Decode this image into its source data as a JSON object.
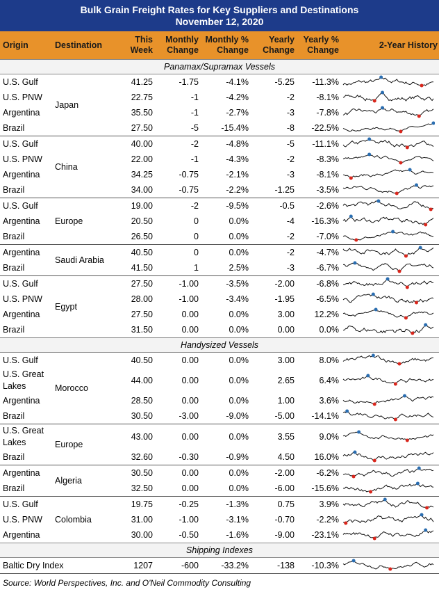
{
  "title": [
    "Bulk Grain Freight Rates for Key Suppliers and Destinations",
    "November 12, 2020"
  ],
  "columns": [
    [
      "Origin"
    ],
    [
      "Destination"
    ],
    [
      "This",
      "Week"
    ],
    [
      "Monthly",
      "Change"
    ],
    [
      "Monthly %",
      "Change"
    ],
    [
      "Yearly",
      "Change"
    ],
    [
      "Yearly %",
      "Change"
    ],
    [
      "2-Year History"
    ]
  ],
  "sections": [
    {
      "title": "Panamax/Supramax Vessels",
      "groups": [
        {
          "destination": "Japan",
          "rows": [
            {
              "origin": "U.S. Gulf",
              "cells": [
                "41.25",
                "-1.75",
                "-4.1%",
                "-5.25",
                "-11.3%"
              ]
            },
            {
              "origin": "U.S. PNW",
              "cells": [
                "22.75",
                "-1",
                "-4.2%",
                "-2",
                "-8.1%"
              ]
            },
            {
              "origin": "Argentina",
              "cells": [
                "35.50",
                "-1",
                "-2.7%",
                "-3",
                "-7.8%"
              ]
            },
            {
              "origin": "Brazil",
              "cells": [
                "27.50",
                "-5",
                "-15.4%",
                "-8",
                "-22.5%"
              ]
            }
          ]
        },
        {
          "destination": "China",
          "rows": [
            {
              "origin": "U.S. Gulf",
              "cells": [
                "40.00",
                "-2",
                "-4.8%",
                "-5",
                "-11.1%"
              ]
            },
            {
              "origin": "U.S. PNW",
              "cells": [
                "22.00",
                "-1",
                "-4.3%",
                "-2",
                "-8.3%"
              ]
            },
            {
              "origin": "Argentina",
              "cells": [
                "34.25",
                "-0.75",
                "-2.1%",
                "-3",
                "-8.1%"
              ]
            },
            {
              "origin": "Brazil",
              "cells": [
                "34.00",
                "-0.75",
                "-2.2%",
                "-1.25",
                "-3.5%"
              ]
            }
          ]
        },
        {
          "destination": "Europe",
          "rows": [
            {
              "origin": "U.S. Gulf",
              "cells": [
                "19.00",
                "-2",
                "-9.5%",
                "-0.5",
                "-2.6%"
              ]
            },
            {
              "origin": "Argentina",
              "cells": [
                "20.50",
                "0",
                "0.0%",
                "-4",
                "-16.3%"
              ]
            },
            {
              "origin": "Brazil",
              "cells": [
                "26.50",
                "0",
                "0.0%",
                "-2",
                "-7.0%"
              ]
            }
          ]
        },
        {
          "destination": "Saudi Arabia",
          "rows": [
            {
              "origin": "Argentina",
              "cells": [
                "40.50",
                "0",
                "0.0%",
                "-2",
                "-4.7%"
              ]
            },
            {
              "origin": "Brazil",
              "cells": [
                "41.50",
                "1",
                "2.5%",
                "-3",
                "-6.7%"
              ]
            }
          ]
        },
        {
          "destination": "Egypt",
          "rows": [
            {
              "origin": "U.S. Gulf",
              "cells": [
                "27.50",
                "-1.00",
                "-3.5%",
                "-2.00",
                "-6.8%"
              ]
            },
            {
              "origin": "U.S. PNW",
              "cells": [
                "28.00",
                "-1.00",
                "-3.4%",
                "-1.95",
                "-6.5%"
              ]
            },
            {
              "origin": "Argentina",
              "cells": [
                "27.50",
                "0.00",
                "0.0%",
                "3.00",
                "12.2%"
              ]
            },
            {
              "origin": "Brazil",
              "cells": [
                "31.50",
                "0.00",
                "0.0%",
                "0.00",
                "0.0%"
              ]
            }
          ]
        }
      ]
    },
    {
      "title": "Handysized Vessels",
      "groups": [
        {
          "destination": "Morocco",
          "rows": [
            {
              "origin": "U.S. Gulf",
              "cells": [
                "40.50",
                "0.00",
                "0.0%",
                "3.00",
                "8.0%"
              ]
            },
            {
              "origin": "U.S. Great Lakes",
              "cells": [
                "44.00",
                "0.00",
                "0.0%",
                "2.65",
                "6.4%"
              ]
            },
            {
              "origin": "Argentina",
              "cells": [
                "28.50",
                "0.00",
                "0.0%",
                "1.00",
                "3.6%"
              ]
            },
            {
              "origin": "Brazil",
              "cells": [
                "30.50",
                "-3.00",
                "-9.0%",
                "-5.00",
                "-14.1%"
              ]
            }
          ]
        },
        {
          "destination": "Europe",
          "rows": [
            {
              "origin": "U.S. Great Lakes",
              "cells": [
                "43.00",
                "0.00",
                "0.0%",
                "3.55",
                "9.0%"
              ]
            },
            {
              "origin": "Brazil",
              "cells": [
                "32.60",
                "-0.30",
                "-0.9%",
                "4.50",
                "16.0%"
              ]
            }
          ]
        },
        {
          "destination": "Algeria",
          "rows": [
            {
              "origin": "Argentina",
              "cells": [
                "30.50",
                "0.00",
                "0.0%",
                "-2.00",
                "-6.2%"
              ]
            },
            {
              "origin": "Brazil",
              "cells": [
                "32.50",
                "0.00",
                "0.0%",
                "-6.00",
                "-15.6%"
              ]
            }
          ]
        },
        {
          "destination": "Colombia",
          "rows": [
            {
              "origin": "U.S. Gulf",
              "cells": [
                "19.75",
                "-0.25",
                "-1.3%",
                "0.75",
                "3.9%"
              ]
            },
            {
              "origin": "U.S. PNW",
              "cells": [
                "31.00",
                "-1.00",
                "-3.1%",
                "-0.70",
                "-2.2%"
              ]
            },
            {
              "origin": "Argentina",
              "cells": [
                "30.00",
                "-0.50",
                "-1.6%",
                "-9.00",
                "-23.1%"
              ]
            }
          ]
        }
      ]
    },
    {
      "title": "Shipping Indexes",
      "groups": [
        {
          "rows": [
            {
              "origin": "Baltic Dry Index",
              "cells": [
                "1207",
                "-600",
                "-33.2%",
                "-138",
                "-10.3%"
              ]
            }
          ]
        }
      ]
    }
  ],
  "source": "Source: World Perspectives, Inc. and O'Neil Commodity Consulting"
}
